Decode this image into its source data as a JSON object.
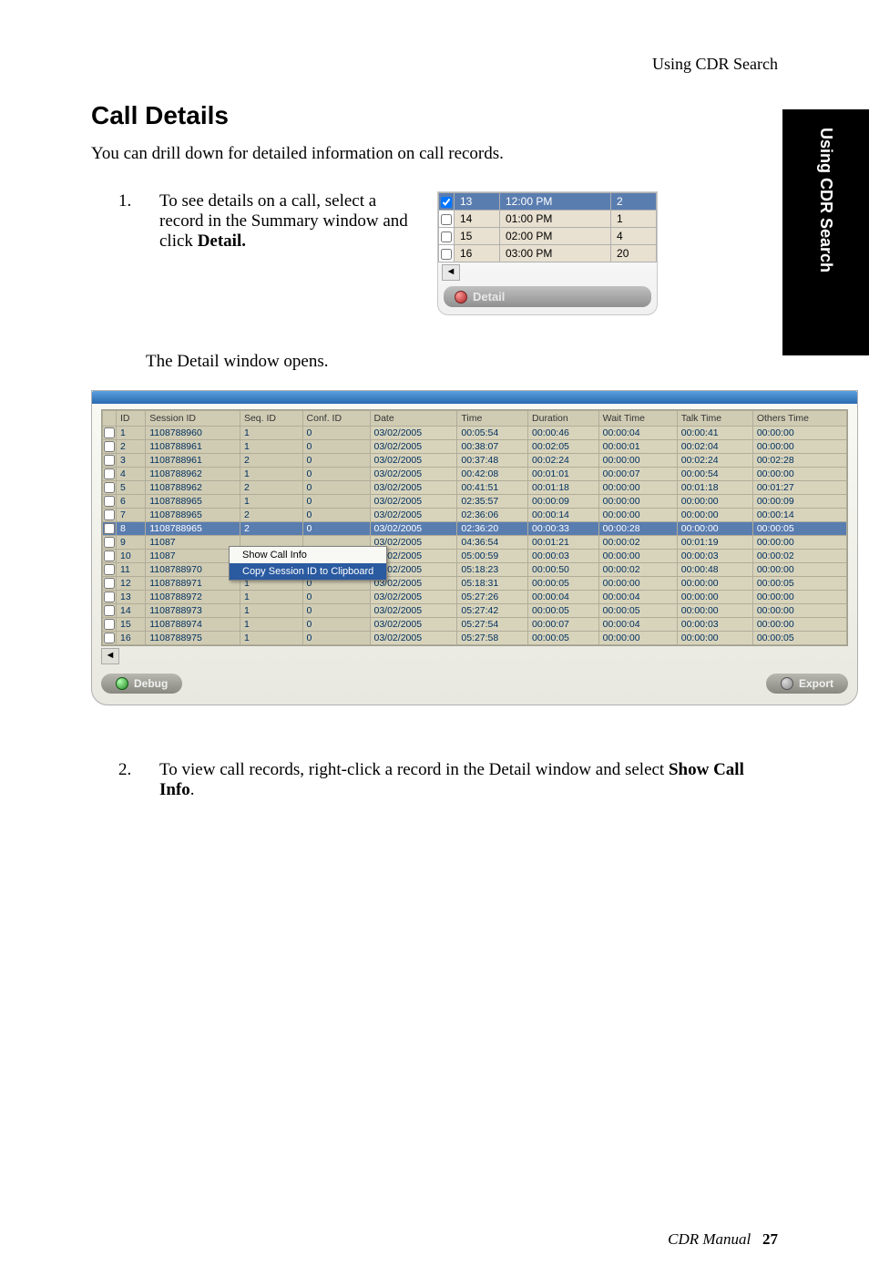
{
  "header": {
    "running_head": "Using CDR Search"
  },
  "side_tab": {
    "label": "Using CDR Search"
  },
  "section": {
    "title": "Call Details",
    "intro": "You can drill down for detailed information on call records."
  },
  "step1": {
    "num": "1.",
    "text_pre": "To see details on a call, select a record in the Summary window and click ",
    "text_bold": "Detail."
  },
  "summary": {
    "rows": [
      {
        "checked": true,
        "id": "13",
        "time": "12:00 PM",
        "val": "2",
        "selected": true
      },
      {
        "checked": false,
        "id": "14",
        "time": "01:00 PM",
        "val": "1",
        "selected": false
      },
      {
        "checked": false,
        "id": "15",
        "time": "02:00 PM",
        "val": "4",
        "selected": false
      },
      {
        "checked": false,
        "id": "16",
        "time": "03:00 PM",
        "val": "20",
        "selected": false
      }
    ],
    "detail_btn": "Detail"
  },
  "mid_text": "The Detail window opens.",
  "detail": {
    "columns": [
      "ID",
      "Session ID",
      "Seq. ID",
      "Conf. ID",
      "Date",
      "Time",
      "Duration",
      "Wait Time",
      "Talk Time",
      "Others Time"
    ],
    "rows": [
      {
        "id": "1",
        "sess": "1108788960",
        "seq": "1",
        "conf": "0",
        "date": "03/02/2005",
        "time": "00:05:54",
        "dur": "00:00:46",
        "wait": "00:00:04",
        "talk": "00:00:41",
        "oth": "00:00:00",
        "sel": false
      },
      {
        "id": "2",
        "sess": "1108788961",
        "seq": "1",
        "conf": "0",
        "date": "03/02/2005",
        "time": "00:38:07",
        "dur": "00:02:05",
        "wait": "00:00:01",
        "talk": "00:02:04",
        "oth": "00:00:00",
        "sel": false
      },
      {
        "id": "3",
        "sess": "1108788961",
        "seq": "2",
        "conf": "0",
        "date": "03/02/2005",
        "time": "00:37:48",
        "dur": "00:02:24",
        "wait": "00:00:00",
        "talk": "00:02:24",
        "oth": "00:02:28",
        "sel": false
      },
      {
        "id": "4",
        "sess": "1108788962",
        "seq": "1",
        "conf": "0",
        "date": "03/02/2005",
        "time": "00:42:08",
        "dur": "00:01:01",
        "wait": "00:00:07",
        "talk": "00:00:54",
        "oth": "00:00:00",
        "sel": false
      },
      {
        "id": "5",
        "sess": "1108788962",
        "seq": "2",
        "conf": "0",
        "date": "03/02/2005",
        "time": "00:41:51",
        "dur": "00:01:18",
        "wait": "00:00:00",
        "talk": "00:01:18",
        "oth": "00:01:27",
        "sel": false
      },
      {
        "id": "6",
        "sess": "1108788965",
        "seq": "1",
        "conf": "0",
        "date": "03/02/2005",
        "time": "02:35:57",
        "dur": "00:00:09",
        "wait": "00:00:00",
        "talk": "00:00:00",
        "oth": "00:00:09",
        "sel": false
      },
      {
        "id": "7",
        "sess": "1108788965",
        "seq": "2",
        "conf": "0",
        "date": "03/02/2005",
        "time": "02:36:06",
        "dur": "00:00:14",
        "wait": "00:00:00",
        "talk": "00:00:00",
        "oth": "00:00:14",
        "sel": false
      },
      {
        "id": "8",
        "sess": "1108788965",
        "seq": "2",
        "conf": "0",
        "date": "03/02/2005",
        "time": "02:36:20",
        "dur": "00:00:33",
        "wait": "00:00:28",
        "talk": "00:00:00",
        "oth": "00:00:05",
        "sel": true
      },
      {
        "id": "9",
        "sess": "11087",
        "seq": "",
        "conf": "",
        "date": "03/02/2005",
        "time": "04:36:54",
        "dur": "00:01:21",
        "wait": "00:00:02",
        "talk": "00:01:19",
        "oth": "00:00:00",
        "sel": false
      },
      {
        "id": "10",
        "sess": "11087",
        "seq": "",
        "conf": "",
        "date": "03/02/2005",
        "time": "05:00:59",
        "dur": "00:00:03",
        "wait": "00:00:00",
        "talk": "00:00:03",
        "oth": "00:00:02",
        "sel": false
      },
      {
        "id": "11",
        "sess": "1108788970",
        "seq": "1",
        "conf": "0",
        "date": "03/02/2005",
        "time": "05:18:23",
        "dur": "00:00:50",
        "wait": "00:00:02",
        "talk": "00:00:48",
        "oth": "00:00:00",
        "sel": false
      },
      {
        "id": "12",
        "sess": "1108788971",
        "seq": "1",
        "conf": "0",
        "date": "03/02/2005",
        "time": "05:18:31",
        "dur": "00:00:05",
        "wait": "00:00:00",
        "talk": "00:00:00",
        "oth": "00:00:05",
        "sel": false
      },
      {
        "id": "13",
        "sess": "1108788972",
        "seq": "1",
        "conf": "0",
        "date": "03/02/2005",
        "time": "05:27:26",
        "dur": "00:00:04",
        "wait": "00:00:04",
        "talk": "00:00:00",
        "oth": "00:00:00",
        "sel": false
      },
      {
        "id": "14",
        "sess": "1108788973",
        "seq": "1",
        "conf": "0",
        "date": "03/02/2005",
        "time": "05:27:42",
        "dur": "00:00:05",
        "wait": "00:00:05",
        "talk": "00:00:00",
        "oth": "00:00:00",
        "sel": false
      },
      {
        "id": "15",
        "sess": "1108788974",
        "seq": "1",
        "conf": "0",
        "date": "03/02/2005",
        "time": "05:27:54",
        "dur": "00:00:07",
        "wait": "00:00:04",
        "talk": "00:00:03",
        "oth": "00:00:00",
        "sel": false
      },
      {
        "id": "16",
        "sess": "1108788975",
        "seq": "1",
        "conf": "0",
        "date": "03/02/2005",
        "time": "05:27:58",
        "dur": "00:00:05",
        "wait": "00:00:00",
        "talk": "00:00:00",
        "oth": "00:00:05",
        "sel": false
      }
    ],
    "context_menu": {
      "item1": "Show Call Info",
      "item2": "Copy Session ID to Clipboard"
    },
    "debug_btn": "Debug",
    "export_btn": "Export"
  },
  "step2": {
    "num": "2.",
    "text_pre": "To view call records, right-click a record in the Detail window and select ",
    "text_bold": "Show Call Info",
    "text_post": "."
  },
  "footer": {
    "book": "CDR Manual",
    "page": "27"
  }
}
